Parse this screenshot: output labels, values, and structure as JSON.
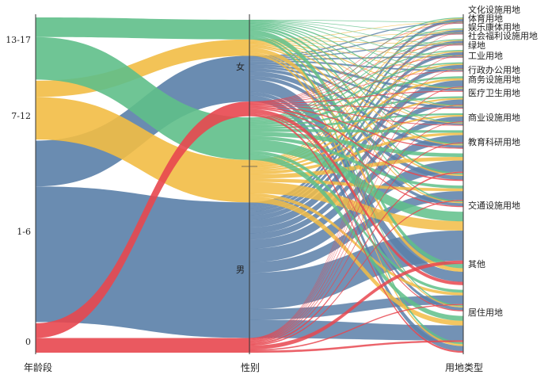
{
  "chart_data": {
    "type": "parallel-sets",
    "axes": [
      {
        "title": "年龄段",
        "categories": [
          "0",
          "1-6",
          "7-12",
          "13-17"
        ]
      },
      {
        "title": "性别",
        "categories": [
          "男",
          "女"
        ]
      },
      {
        "title": "用地类型",
        "categories": [
          "居住用地",
          "其他",
          "交通设施用地",
          "教育科研用地",
          "商业设施用地",
          "医疗卫生用地",
          "商务设施用地",
          "行政办公用地",
          "工业用地",
          "绿地",
          "社会福利设施用地",
          "娱乐康体用地",
          "体育用地",
          "文化设施用地"
        ]
      }
    ],
    "colors": {
      "0": "#e8474f",
      "1-6": "#5a7fa8",
      "7-12": "#f2bc45",
      "13-17": "#5fbf89"
    },
    "flows": [
      {
        "age": "0",
        "gender": "男",
        "value": 4.5
      },
      {
        "age": "0",
        "gender": "女",
        "value": 4.5
      },
      {
        "age": "1-6",
        "gender": "男",
        "value": 41.5
      },
      {
        "age": "1-6",
        "gender": "女",
        "value": 14
      },
      {
        "age": "7-12",
        "gender": "男",
        "value": 13
      },
      {
        "age": "7-12",
        "gender": "女",
        "value": 5
      },
      {
        "age": "13-17",
        "gender": "男",
        "value": 13
      },
      {
        "age": "13-17",
        "gender": "女",
        "value": 6
      }
    ],
    "landuse_share": {
      "居住用地": 12,
      "其他": 7,
      "交通设施用地": 24,
      "教育科研用地": 7,
      "商业设施用地": 9,
      "医疗卫生用地": 6,
      "商务设施用地": 4,
      "行政办公用地": 4,
      "工业用地": 5,
      "绿地": 3,
      "社会福利设施用地": 2.5,
      "娱乐康体用地": 2,
      "体育用地": 2,
      "文化设施用地": 2
    }
  }
}
